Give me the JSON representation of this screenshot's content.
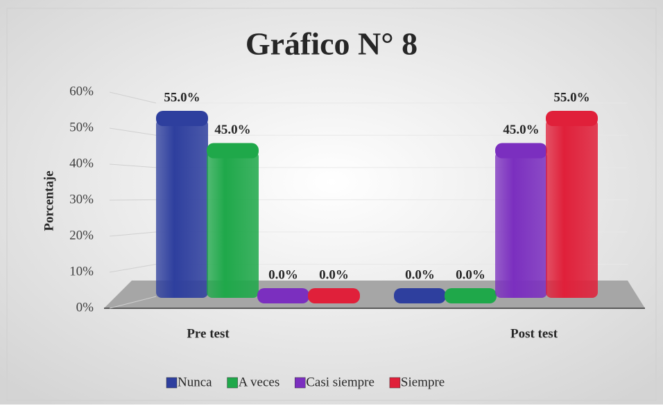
{
  "chart_data": {
    "type": "bar3d",
    "title": "Gráfico N° 8",
    "y_label": "Porcentaje",
    "categories": [
      "Pre test",
      "Post test"
    ],
    "series": [
      {
        "name": "Nunca",
        "color": "#2e3f9e",
        "values": [
          55,
          0
        ],
        "value_labels": [
          "55.0%",
          "0.0%"
        ]
      },
      {
        "name": "A veces",
        "color": "#1fa84a",
        "values": [
          45,
          0
        ],
        "value_labels": [
          "45.0%",
          "0.0%"
        ]
      },
      {
        "name": "Casi siempre",
        "color": "#7b2fbf",
        "values": [
          0,
          45
        ],
        "value_labels": [
          "0.0%",
          "45.0%"
        ]
      },
      {
        "name": "Siempre",
        "color": "#e0203a",
        "values": [
          0,
          55
        ],
        "value_labels": [
          "0.0%",
          "55.0%"
        ]
      }
    ],
    "ylim": [
      0,
      60
    ],
    "yticks": [
      {
        "value": 0,
        "label": "0%"
      },
      {
        "value": 10,
        "label": "10%"
      },
      {
        "value": 20,
        "label": "20%"
      },
      {
        "value": 30,
        "label": "30%"
      },
      {
        "value": 40,
        "label": "40%"
      },
      {
        "value": 50,
        "label": "50%"
      },
      {
        "value": 60,
        "label": "60%"
      }
    ],
    "grid": true,
    "legend": "bottom"
  }
}
